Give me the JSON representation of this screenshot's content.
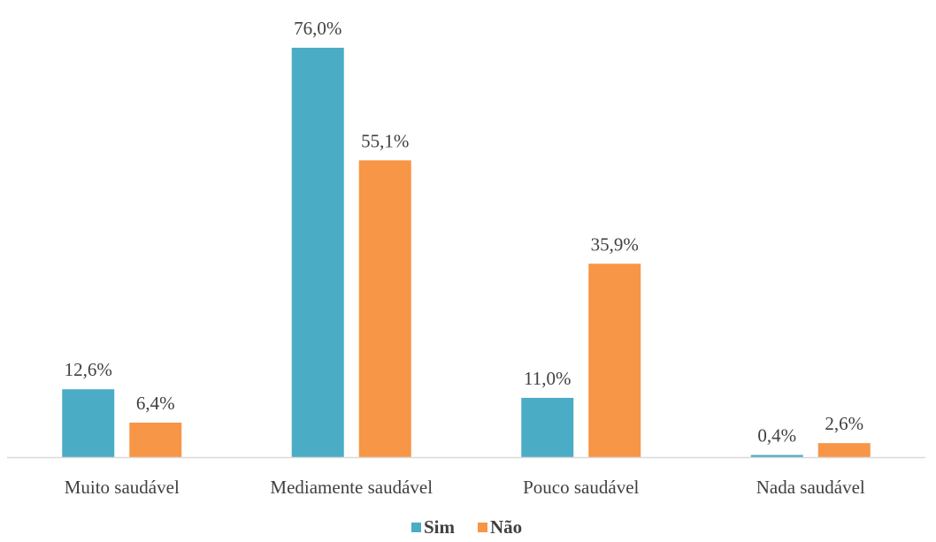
{
  "chart_data": {
    "type": "bar",
    "title": "",
    "xlabel": "",
    "ylabel": "",
    "categories": [
      "Muito saudável",
      "Mediamente saudável",
      "Pouco saudável",
      "Nada saudável"
    ],
    "series": [
      {
        "name": "Sim",
        "color": "#4BACC6",
        "values": [
          12.6,
          76.0,
          11.0,
          0.4
        ],
        "labels": [
          "12,6%",
          "76,0%",
          "11,0%",
          "0,4%"
        ]
      },
      {
        "name": "Não",
        "color": "#F79646",
        "values": [
          6.4,
          55.1,
          35.9,
          2.6
        ],
        "labels": [
          "6,4%",
          "55,1%",
          "35,9%",
          "2,6%"
        ]
      }
    ],
    "ylim": [
      0,
      80
    ],
    "grid": false,
    "legend_position": "bottom"
  }
}
